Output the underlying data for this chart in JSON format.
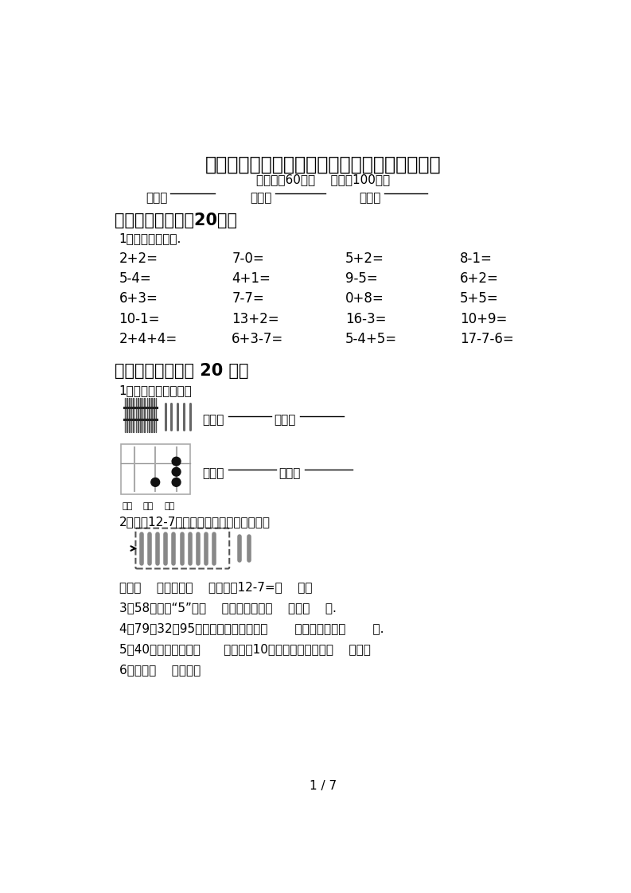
{
  "title": "部编人教版一年级数学下册期末考试卷（下载）",
  "subtitle": "（时间：60分钟    分数：100分）",
  "class_label": "班级：",
  "name_label": "姓名：",
  "score_label": "分数：",
  "section1_title": "一、计算小能手（20分）",
  "section1_sub": "1、直接写出得数.",
  "math_rows": [
    [
      "2+2=",
      "7-0=",
      "5+2=",
      "8-1="
    ],
    [
      "5-4=",
      "4+1=",
      "9-5=",
      "6+2="
    ],
    [
      "6+3=",
      "7-7=",
      "0+8=",
      "5+5="
    ],
    [
      "10-1=",
      "13+2=",
      "16-3=",
      "10+9="
    ],
    [
      "2+4+4=",
      "6+3-7=",
      "5-4+5=",
      "17-7-6="
    ]
  ],
  "section2_title": "二、填空题。（共 20 分）",
  "section2_q1": "1、我会读，我会写。",
  "read_label": "读作：",
  "write_label": "写作：",
  "bai_label": "百位",
  "shi_label": "十位",
  "ge_label": "个位",
  "section2_q2_title": "2、计算12-7时，笑笑摘出了这样的小棒：",
  "section2_q2_text": "先算（    ），再算（    ），所以12-7=（    ）。",
  "section2_q3": "3、58里面的“5”在（    ）位上，表示（    ）个（    ）.",
  "section2_q4": "4、79、32、95三个数中，最大的是（       ），最小的是（       ）.",
  "section2_q5": "5、40个苹果，共有（      ）个十，10个装一袋，可以装（    ）袋。",
  "section2_q6": "6、缺了（    ）块砖。",
  "page_num": "1 / 7",
  "bg_color": "#ffffff",
  "text_color": "#000000"
}
